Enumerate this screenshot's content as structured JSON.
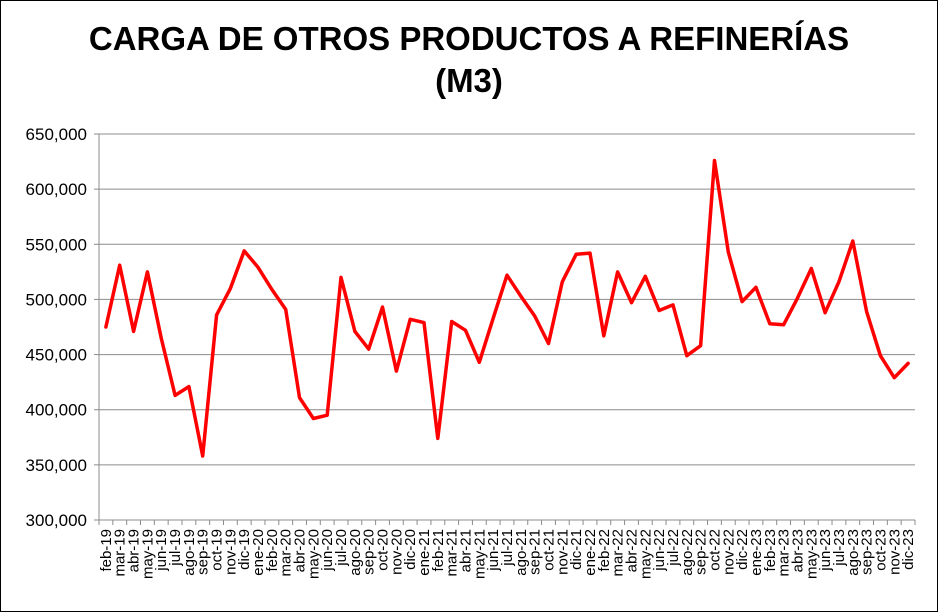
{
  "chart_data": {
    "type": "line",
    "title_line1": "CARGA DE OTROS PRODUCTOS A REFINERÍAS",
    "title_line2": "(M3)",
    "xlabel": "",
    "ylabel": "",
    "ylim": [
      300000,
      650000
    ],
    "ytick_values": [
      300000,
      350000,
      400000,
      450000,
      500000,
      550000,
      600000,
      650000
    ],
    "ytick_labels": [
      "300,000",
      "350,000",
      "400,000",
      "450,000",
      "500,000",
      "550,000",
      "600,000",
      "650,000"
    ],
    "grid": true,
    "legend": "none",
    "line_color": "#ff0000",
    "categories": [
      "feb-19",
      "mar-19",
      "abr-19",
      "may-19",
      "jun-19",
      "jul-19",
      "ago-19",
      "sep-19",
      "oct-19",
      "nov-19",
      "dic-19",
      "ene-20",
      "feb-20",
      "mar-20",
      "abr-20",
      "may-20",
      "jun-20",
      "jul-20",
      "ago-20",
      "sep-20",
      "oct-20",
      "nov-20",
      "dic-20",
      "ene-21",
      "feb-21",
      "mar-21",
      "abr-21",
      "may-21",
      "jun-21",
      "jul-21",
      "ago-21",
      "sep-21",
      "oct-21",
      "nov-21",
      "dic-21",
      "ene-22",
      "feb-22",
      "mar-22",
      "abr-22",
      "may-22",
      "jun-22",
      "jul-22",
      "ago-22",
      "sep-22",
      "oct-22",
      "nov-22",
      "dic-22",
      "ene-23",
      "feb-23",
      "mar-23",
      "abr-23",
      "may-23",
      "jun-23",
      "jul-23",
      "ago-23",
      "sep-23",
      "oct-23",
      "nov-23",
      "dic-23"
    ],
    "values": [
      475000,
      531000,
      471000,
      525000,
      465000,
      413000,
      421000,
      358000,
      486000,
      510000,
      544000,
      529000,
      509000,
      491000,
      411000,
      392000,
      395000,
      520000,
      471000,
      455000,
      493000,
      435000,
      482000,
      479000,
      374000,
      480000,
      472000,
      443000,
      483000,
      522000,
      503000,
      485000,
      460000,
      516000,
      541000,
      542000,
      467000,
      525000,
      497000,
      521000,
      490000,
      495000,
      449000,
      458000,
      626000,
      543000,
      498000,
      511000,
      478000,
      477000,
      501000,
      528000,
      488000,
      516000,
      553000,
      489000,
      449000,
      429000,
      442000
    ]
  }
}
